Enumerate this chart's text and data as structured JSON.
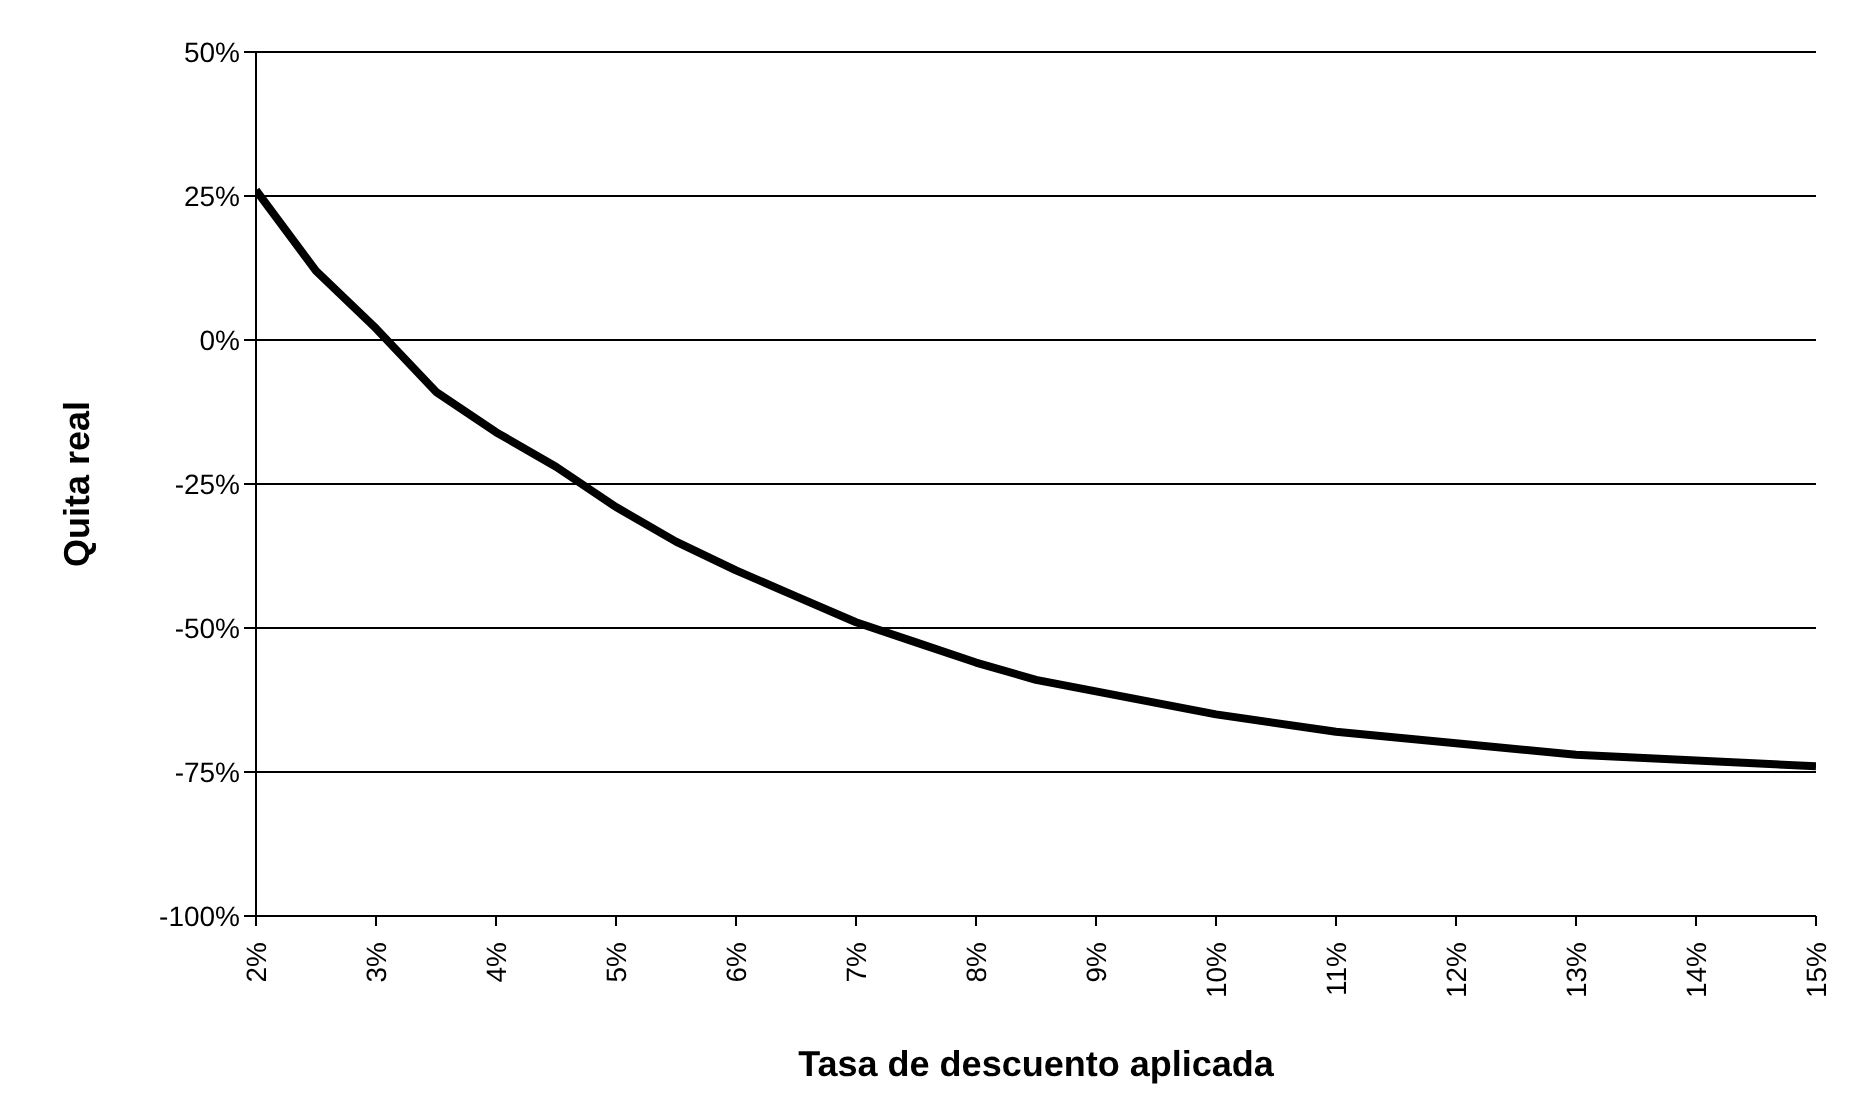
{
  "chart_data": {
    "type": "line",
    "xlabel": "Tasa de descuento aplicada",
    "ylabel": "Quita real",
    "x": [
      2,
      2.5,
      3,
      3.5,
      4,
      4.5,
      5,
      5.5,
      6,
      6.5,
      7,
      7.5,
      8,
      8.5,
      9,
      9.5,
      10,
      11,
      12,
      13,
      14,
      15
    ],
    "series": [
      {
        "color": "#000000",
        "values": [
          26,
          12,
          2,
          -9,
          -16,
          -22,
          -29,
          -35,
          -40,
          -44.5,
          -49,
          -52.5,
          -56,
          -59,
          -61,
          -63,
          -65,
          -68,
          -70,
          -72,
          -73,
          -74
        ]
      }
    ],
    "xlim": [
      2,
      15
    ],
    "xticks": [
      {
        "value": 2,
        "label": "2%"
      },
      {
        "value": 3,
        "label": "3%"
      },
      {
        "value": 4,
        "label": "4%"
      },
      {
        "value": 5,
        "label": "5%"
      },
      {
        "value": 6,
        "label": "6%"
      },
      {
        "value": 7,
        "label": "7%"
      },
      {
        "value": 8,
        "label": "8%"
      },
      {
        "value": 9,
        "label": "9%"
      },
      {
        "value": 10,
        "label": "10%"
      },
      {
        "value": 11,
        "label": "11%"
      },
      {
        "value": 12,
        "label": "12%"
      },
      {
        "value": 13,
        "label": "13%"
      },
      {
        "value": 14,
        "label": "14%"
      },
      {
        "value": 15,
        "label": "15%"
      }
    ],
    "ylim": [
      -100,
      50
    ],
    "yticks": [
      {
        "value": -100,
        "label": "-100%"
      },
      {
        "value": -75,
        "label": "-75%"
      },
      {
        "value": -50,
        "label": "-50%"
      },
      {
        "value": -25,
        "label": "-25%"
      },
      {
        "value": 0,
        "label": "0%"
      },
      {
        "value": 25,
        "label": "25%"
      },
      {
        "value": 50,
        "label": "50%"
      }
    ],
    "grid": "y",
    "marker": "none",
    "line_style": "solid"
  }
}
